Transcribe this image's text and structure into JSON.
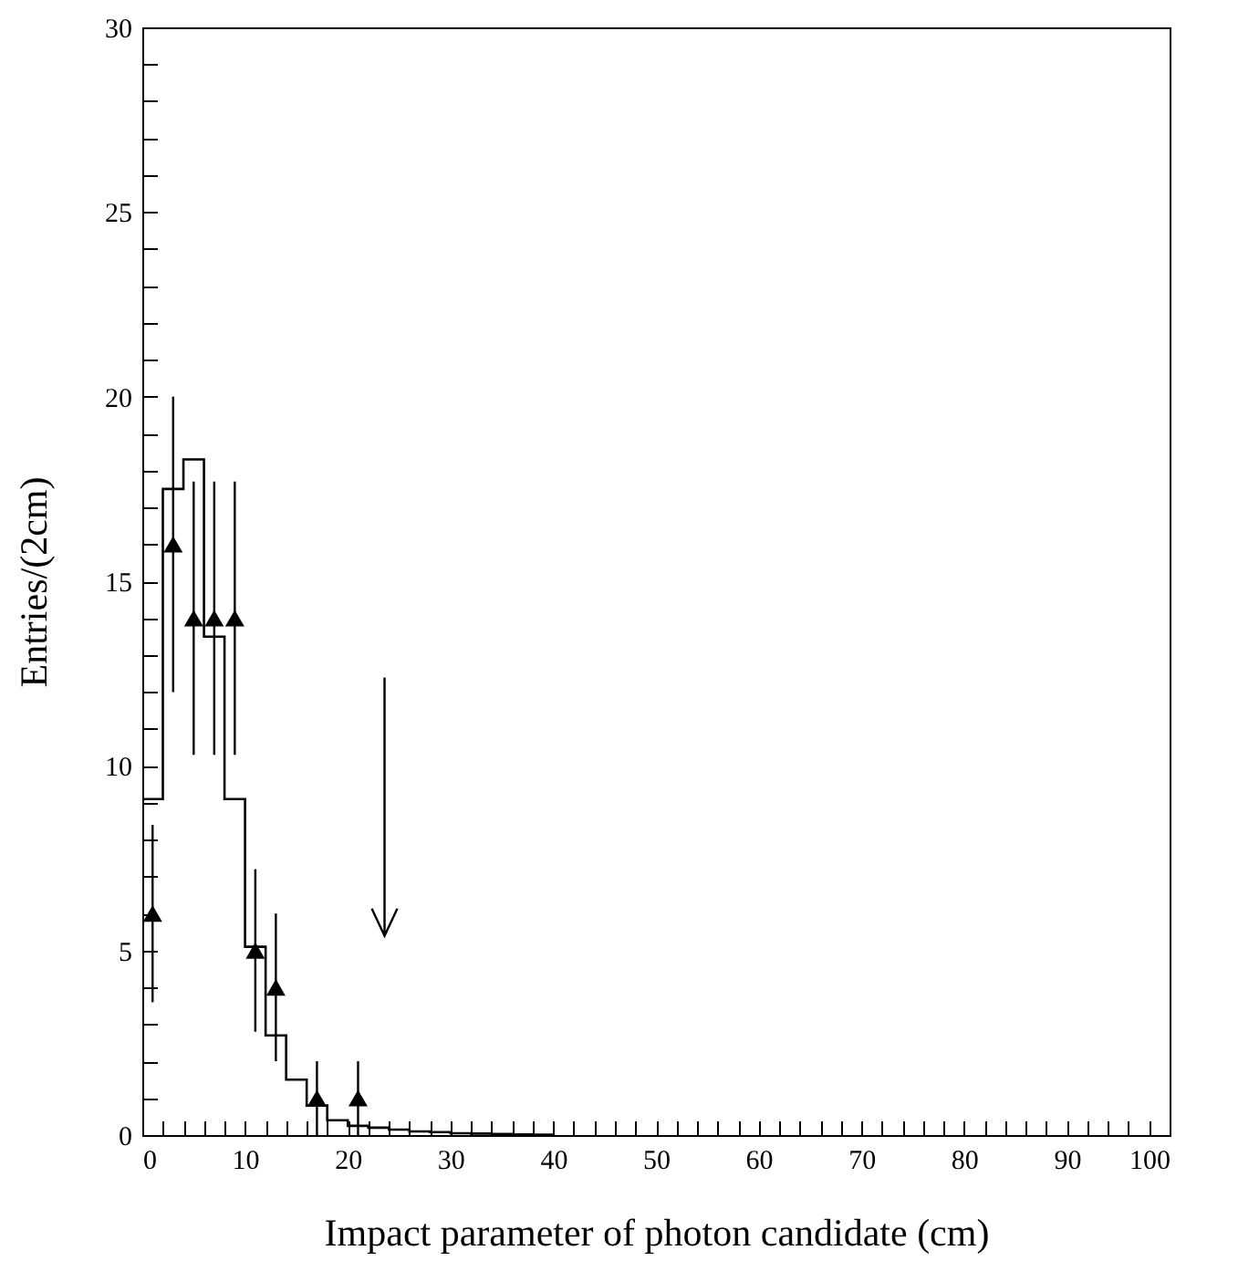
{
  "chart_data": {
    "type": "histogram",
    "xlabel": "Impact parameter of  photon candidate (cm)",
    "ylabel": "Entries/(2cm)",
    "xlim": [
      0,
      100
    ],
    "ylim": [
      0,
      30
    ],
    "xticks": [
      0,
      {
        "value": 2,
        "label": null
      },
      {
        "value": 4,
        "label": null
      },
      {
        "value": 6,
        "label": null
      },
      {
        "value": 8,
        "label": null
      },
      10,
      {
        "value": 12,
        "label": null
      },
      {
        "value": 14,
        "label": null
      },
      {
        "value": 16,
        "label": null
      },
      {
        "value": 18,
        "label": null
      },
      20,
      {
        "value": 22,
        "label": null
      },
      {
        "value": 24,
        "label": null
      },
      {
        "value": 26,
        "label": null
      },
      {
        "value": 28,
        "label": null
      },
      30,
      {
        "value": 32,
        "label": null
      },
      {
        "value": 34,
        "label": null
      },
      {
        "value": 36,
        "label": null
      },
      {
        "value": 38,
        "label": null
      },
      40,
      {
        "value": 42,
        "label": null
      },
      {
        "value": 44,
        "label": null
      },
      {
        "value": 46,
        "label": null
      },
      {
        "value": 48,
        "label": null
      },
      50,
      {
        "value": 52,
        "label": null
      },
      {
        "value": 54,
        "label": null
      },
      {
        "value": 56,
        "label": null
      },
      {
        "value": 58,
        "label": null
      },
      60,
      {
        "value": 62,
        "label": null
      },
      {
        "value": 64,
        "label": null
      },
      {
        "value": 66,
        "label": null
      },
      {
        "value": 68,
        "label": null
      },
      70,
      {
        "value": 72,
        "label": null
      },
      {
        "value": 74,
        "label": null
      },
      {
        "value": 76,
        "label": null
      },
      {
        "value": 78,
        "label": null
      },
      80,
      {
        "value": 82,
        "label": null
      },
      {
        "value": 84,
        "label": null
      },
      {
        "value": 86,
        "label": null
      },
      {
        "value": 88,
        "label": null
      },
      90,
      {
        "value": 92,
        "label": null
      },
      {
        "value": 94,
        "label": null
      },
      {
        "value": 96,
        "label": null
      },
      {
        "value": 98,
        "label": null
      },
      100
    ],
    "yticks": [
      0,
      {
        "value": 1,
        "label": null
      },
      {
        "value": 2,
        "label": null
      },
      {
        "value": 3,
        "label": null
      },
      {
        "value": 4,
        "label": null
      },
      5,
      {
        "value": 6,
        "label": null
      },
      {
        "value": 7,
        "label": null
      },
      {
        "value": 8,
        "label": null
      },
      {
        "value": 9,
        "label": null
      },
      10,
      {
        "value": 11,
        "label": null
      },
      {
        "value": 12,
        "label": null
      },
      {
        "value": 13,
        "label": null
      },
      {
        "value": 14,
        "label": null
      },
      15,
      {
        "value": 16,
        "label": null
      },
      {
        "value": 17,
        "label": null
      },
      {
        "value": 18,
        "label": null
      },
      {
        "value": 19,
        "label": null
      },
      20,
      {
        "value": 21,
        "label": null
      },
      {
        "value": 22,
        "label": null
      },
      {
        "value": 23,
        "label": null
      },
      {
        "value": 24,
        "label": null
      },
      25,
      {
        "value": 26,
        "label": null
      },
      {
        "value": 27,
        "label": null
      },
      {
        "value": 28,
        "label": null
      },
      {
        "value": 29,
        "label": null
      },
      30
    ],
    "grid": false,
    "series": [
      {
        "type": "histogram",
        "color": "#000000",
        "bins": [
          0,
          2,
          4,
          6,
          8,
          10,
          12,
          14,
          16,
          18,
          20,
          22,
          24,
          26,
          28,
          30,
          32,
          34,
          36,
          38,
          40
        ],
        "values": [
          9.1,
          17.5,
          18.3,
          13.5,
          9.1,
          5.1,
          2.7,
          1.5,
          0.8,
          0.4,
          0.25,
          0.2,
          0.15,
          0.1,
          0.08,
          0.05,
          0.04,
          0.03,
          0.02,
          0.01
        ]
      },
      {
        "type": "scatter",
        "color": "#000000",
        "marker": "triangle",
        "x": [
          1,
          3,
          5,
          7,
          9,
          11,
          13,
          17,
          21
        ],
        "values": [
          6,
          16,
          14,
          14,
          14,
          5,
          4,
          1,
          1
        ],
        "errors": [
          [
            3.6,
            8.4
          ],
          [
            12,
            20
          ],
          [
            10.3,
            17.7
          ],
          [
            10.3,
            17.7
          ],
          [
            10.3,
            17.7
          ],
          [
            2.8,
            7.2
          ],
          [
            2,
            6
          ],
          [
            0,
            2
          ],
          [
            0,
            2
          ]
        ]
      }
    ]
  }
}
